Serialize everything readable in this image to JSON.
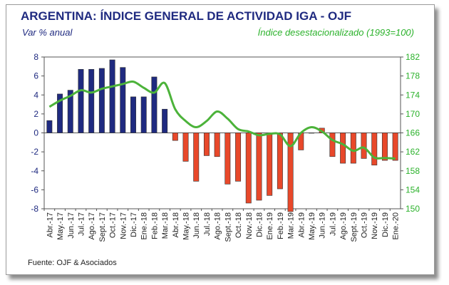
{
  "header": {
    "title": "ARGENTINA: ÍNDICE GENERAL DE ACTIVIDAD IGA - OJF",
    "left_subtitle": "Var % anual",
    "right_subtitle": "Índice desestacionalizado (1993=100)"
  },
  "footer": {
    "source": "Fuente: OJF & Asociados"
  },
  "colors": {
    "title": "#1f2a80",
    "bar_positive_2017": "#1f2a80",
    "bar_negative": "#e8482a",
    "line": "#4cb33a",
    "right_axis_text": "#2bb22b"
  },
  "chart_data": {
    "type": "bar+line",
    "categories": [
      "Abr.-17",
      "May.-17",
      "Jun.-17",
      "Jul.-17",
      "Ago.-17",
      "Sept.-17",
      "Oct.-17",
      "Nov.-17",
      "Dic.-17",
      "Ene.-18",
      "Feb.-18",
      "Mar.-18",
      "Abr.-18",
      "May.-18",
      "Jun.-18",
      "Jul.-18",
      "Ago.-18",
      "Sept.-18",
      "Oct.-18",
      "Nov.-18",
      "Dic.-18",
      "Ene.-19",
      "Feb.-19",
      "Mar.-19",
      "Abr.-19",
      "May.-19",
      "Jun.-19",
      "Jul.-19",
      "Ago.-19",
      "Sept.-19",
      "Oct.-19",
      "Nov.-19",
      "Dic.-19",
      "Ene.-20"
    ],
    "tick_labels": [
      "Abr.-17",
      "May.-17",
      "Jun.-17",
      "Jul.-17",
      "Ago.-17",
      "Sept.-17",
      "Oct.-17",
      "Nov.-17",
      "Dic.-17",
      "Ene.-18",
      "Feb.-18",
      "Mar.-18",
      "Abr.-18",
      "May.-18",
      "Jun.-18",
      "Jul.-18",
      "Ago.-18",
      "Sept.-18",
      "Oct.-18",
      "Nov.-18",
      "Dic.-18",
      "Ene.-19",
      "Feb.-19",
      "Mar.-19",
      "Abr.-19",
      "May.-19",
      "Jun.-19",
      "Jul.-19",
      "Ago.-19",
      "Sept.-19",
      "Oct.-19",
      "Nov.-19",
      "Dic.-19",
      "Ene.-20"
    ],
    "bars": {
      "axis": "left",
      "values": [
        1.3,
        4.1,
        4.5,
        6.7,
        6.7,
        6.8,
        7.7,
        6.9,
        3.8,
        3.8,
        5.9,
        2.5,
        -0.8,
        -3.0,
        -5.1,
        -2.4,
        -2.5,
        -5.4,
        -5.1,
        -7.4,
        -7.1,
        -6.6,
        -5.9,
        -8.3,
        -1.8,
        0.0,
        0.5,
        -2.5,
        -3.2,
        -3.2,
        -2.7,
        -3.4,
        -2.9,
        -2.9
      ]
    },
    "line": {
      "axis": "right",
      "values": [
        171.5,
        172.8,
        173.8,
        175.0,
        174.5,
        175.3,
        175.8,
        176.3,
        176.8,
        175.5,
        174.5,
        176.5,
        171.0,
        168.5,
        167.2,
        168.5,
        170.5,
        169.0,
        166.8,
        166.3,
        165.5,
        165.8,
        165.7,
        163.2,
        166.0,
        167.2,
        166.3,
        164.5,
        163.6,
        162.2,
        162.9,
        160.8,
        160.7,
        160.6
      ]
    },
    "y_left": {
      "min": -8,
      "max": 8,
      "ticks": [
        -8,
        -6,
        -4,
        -2,
        0,
        2,
        4,
        6,
        8
      ]
    },
    "y_right": {
      "min": 150,
      "max": 182,
      "ticks": [
        150,
        154,
        158,
        162,
        166,
        170,
        174,
        178,
        182
      ]
    },
    "grid": false,
    "legend": "none"
  }
}
